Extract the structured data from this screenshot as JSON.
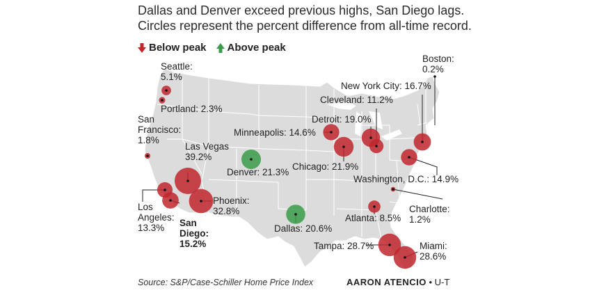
{
  "title": {
    "line1": "Dallas and Denver exceed previous highs, San Diego lags.",
    "line2": "Circles represent the percent difference from all-time record."
  },
  "legend": {
    "below": "Below peak",
    "above": "Above peak"
  },
  "colors": {
    "below": "#c0272d",
    "above": "#3a9b48",
    "map_fill": "#dcdcdc",
    "map_border": "#ffffff"
  },
  "cities": [
    {
      "name": "Seattle",
      "value": "5.1%",
      "pct": 5.1,
      "status": "below",
      "label": [
        "Seattle:",
        "5.1%"
      ]
    },
    {
      "name": "Portland",
      "value": "2.3%",
      "pct": 2.3,
      "status": "below",
      "label": [
        "Portland: 2.3%"
      ]
    },
    {
      "name": "San Francisco",
      "value": "1.8%",
      "pct": 1.8,
      "status": "below",
      "label": [
        "San",
        "Francisco:",
        "1.8%"
      ]
    },
    {
      "name": "Las Vegas",
      "value": "39.2%",
      "pct": 39.2,
      "status": "below",
      "label": [
        "Las Vegas",
        "39.2%"
      ]
    },
    {
      "name": "Los Angeles",
      "value": "13.3%",
      "pct": 13.3,
      "status": "below",
      "label": [
        "Los",
        "Angeles:",
        "13.3%"
      ]
    },
    {
      "name": "San Diego",
      "value": "15.2%",
      "pct": 15.2,
      "status": "below",
      "label": [
        "San",
        "Diego:",
        "15.2%"
      ],
      "bold": true
    },
    {
      "name": "Phoenix",
      "value": "32.8%",
      "pct": 32.8,
      "status": "below",
      "label": [
        "Phoenix:",
        "32.8%"
      ]
    },
    {
      "name": "Denver",
      "value": "21.3%",
      "pct": 21.3,
      "status": "above",
      "label": [
        "Denver: 21.3%"
      ]
    },
    {
      "name": "Dallas",
      "value": "20.6%",
      "pct": 20.6,
      "status": "above",
      "label": [
        "Dallas: 20.6%"
      ]
    },
    {
      "name": "Minneapolis",
      "value": "14.6%",
      "pct": 14.6,
      "status": "below",
      "label": [
        "Minneapolis: 14.6%"
      ]
    },
    {
      "name": "Chicago",
      "value": "21.9%",
      "pct": 21.9,
      "status": "below",
      "label": [
        "Chicago: 21.9%"
      ]
    },
    {
      "name": "Detroit",
      "value": "19.0%",
      "pct": 19.0,
      "status": "below",
      "label": [
        "Detroit: 19.0%"
      ]
    },
    {
      "name": "Cleveland",
      "value": "11.2%",
      "pct": 11.2,
      "status": "below",
      "label": [
        "Cleveland: 11.2%"
      ]
    },
    {
      "name": "New York City",
      "value": "16.7%",
      "pct": 16.7,
      "status": "below",
      "label": [
        "New York City: 16.7%"
      ]
    },
    {
      "name": "Boston",
      "value": "0.2%",
      "pct": 0.2,
      "status": "below",
      "label": [
        "Boston:",
        "0.2%"
      ]
    },
    {
      "name": "Washington, D.C.",
      "value": "14.9%",
      "pct": 14.9,
      "status": "below",
      "label": [
        "Washington, D.C.: 14.9%"
      ]
    },
    {
      "name": "Charlotte",
      "value": "1.2%",
      "pct": 1.2,
      "status": "below",
      "label": [
        "Charlotte:",
        "1.2%"
      ]
    },
    {
      "name": "Atlanta",
      "value": "8.5%",
      "pct": 8.5,
      "status": "below",
      "label": [
        "Atlanta: 8.5%"
      ]
    },
    {
      "name": "Tampa",
      "value": "28.7%",
      "pct": 28.7,
      "status": "below",
      "label": [
        "Tampa: 28.7%"
      ]
    },
    {
      "name": "Miami",
      "value": "28.6%",
      "pct": 28.6,
      "status": "below",
      "label": [
        "Miami:",
        "28.6%"
      ]
    }
  ],
  "footer": {
    "source": "Source: S&P/Case-Schiller Home Price Index",
    "credit_name": "AARON ATENCIO",
    "credit_org": "• U-T"
  }
}
